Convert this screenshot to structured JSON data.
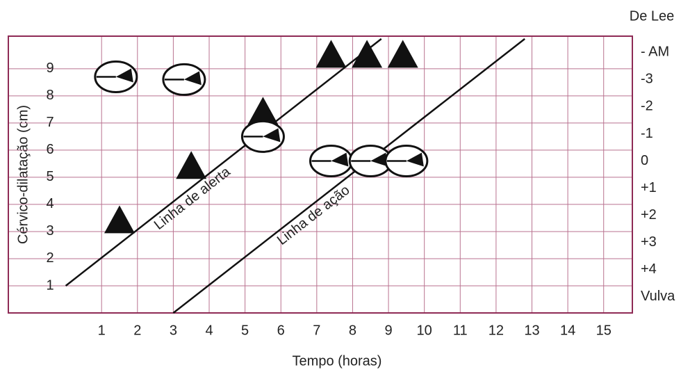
{
  "chart_data": {
    "type": "partograph",
    "y_label": "Cérvico-dilatação (cm)",
    "x_label": "Tempo (horas)",
    "y2_label": "De Lee",
    "xlim": [
      -1.6,
      15.8
    ],
    "xticks": [
      1,
      2,
      3,
      4,
      5,
      6,
      7,
      8,
      9,
      10,
      11,
      12,
      13,
      14,
      15
    ],
    "ylim": [
      0,
      10.2
    ],
    "yticks": [
      1,
      2,
      3,
      4,
      5,
      6,
      7,
      8,
      9
    ],
    "y2lim": [
      5.6,
      -4.6
    ],
    "y2ticks": [
      {
        "value": -4,
        "label": "- AM"
      },
      -3,
      -2,
      -1,
      0,
      {
        "value": 1,
        "label": "+1"
      },
      {
        "value": 2,
        "label": "+2"
      },
      {
        "value": 3,
        "label": "+3"
      },
      {
        "value": 4,
        "label": "+4"
      },
      {
        "value": 5,
        "label": "Vulva"
      }
    ],
    "grid": true,
    "border_color": "#8e2a55",
    "grid_color": "#b9728f",
    "lines": [
      {
        "name": "Linha de alerta",
        "x": [
          0,
          8.8
        ],
        "values": [
          1,
          10.1
        ],
        "color": "#111"
      },
      {
        "name": "Linha de ação",
        "x": [
          3,
          12.8
        ],
        "values": [
          0,
          10.1
        ],
        "color": "#111"
      }
    ],
    "series": [
      {
        "marker": "triangle",
        "color": "#111",
        "x": [
          1.5,
          3.5,
          5.5,
          7.4,
          8.4,
          9.4
        ],
        "values": [
          3.4,
          5.4,
          7.4,
          9.5,
          9.5,
          9.5
        ]
      },
      {
        "marker": "position",
        "color": "#111",
        "x": [
          1.4,
          3.3,
          5.5,
          7.4,
          8.5,
          9.5
        ],
        "values": [
          8.7,
          8.6,
          6.5,
          5.6,
          5.6,
          5.6
        ]
      }
    ]
  }
}
